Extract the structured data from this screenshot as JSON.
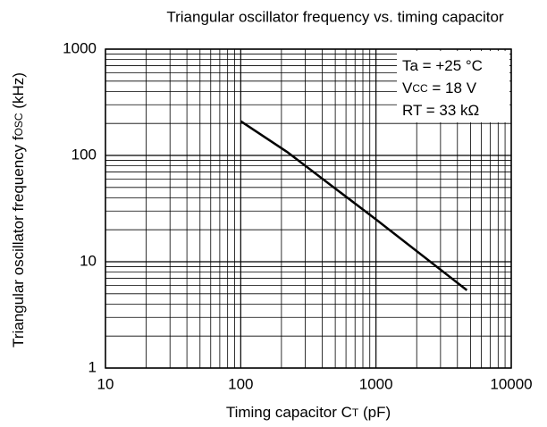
{
  "chart_data": {
    "type": "line",
    "title": "Triangular oscillator frequency vs. timing capacitor",
    "x_label": {
      "parts": [
        {
          "text": "Timing capacitor  C"
        },
        {
          "text": "T",
          "sub": true
        },
        {
          "text": " (pF)"
        }
      ]
    },
    "y_label": {
      "parts": [
        {
          "text": "Triangular oscillator frequency  f"
        },
        {
          "text": "OSC",
          "sub": true
        },
        {
          "text": " (kHz)"
        }
      ]
    },
    "x": [
      100,
      220,
      1000,
      4700
    ],
    "series": [
      {
        "color": "#000000",
        "values": [
          210,
          108,
          25,
          5.4
        ]
      }
    ],
    "xlim": [
      10,
      10000
    ],
    "ylim": [
      1,
      1000
    ],
    "xticks": [
      10,
      100,
      1000,
      10000
    ],
    "yticks": [
      1,
      10,
      100,
      1000
    ],
    "xminorticks": [
      20,
      30,
      40,
      50,
      60,
      70,
      80,
      90,
      200,
      300,
      400,
      500,
      600,
      700,
      800,
      900,
      2000,
      3000,
      4000,
      5000,
      6000,
      7000,
      8000,
      9000
    ],
    "yminorticks": [
      2,
      3,
      4,
      5,
      6,
      7,
      8,
      9,
      20,
      30,
      40,
      50,
      60,
      70,
      80,
      90,
      200,
      300,
      400,
      500,
      600,
      700,
      800,
      900
    ],
    "xscale": "log",
    "yscale": "log",
    "grid": true,
    "annotations": [
      {
        "parts": [
          {
            "text": "Ta = +25 °C"
          }
        ]
      },
      {
        "parts": [
          {
            "text": "V"
          },
          {
            "text": "CC",
            "sub": true
          },
          {
            "text": " = 18 V"
          }
        ]
      },
      {
        "parts": [
          {
            "text": "RT = 33 kΩ"
          }
        ]
      }
    ]
  }
}
